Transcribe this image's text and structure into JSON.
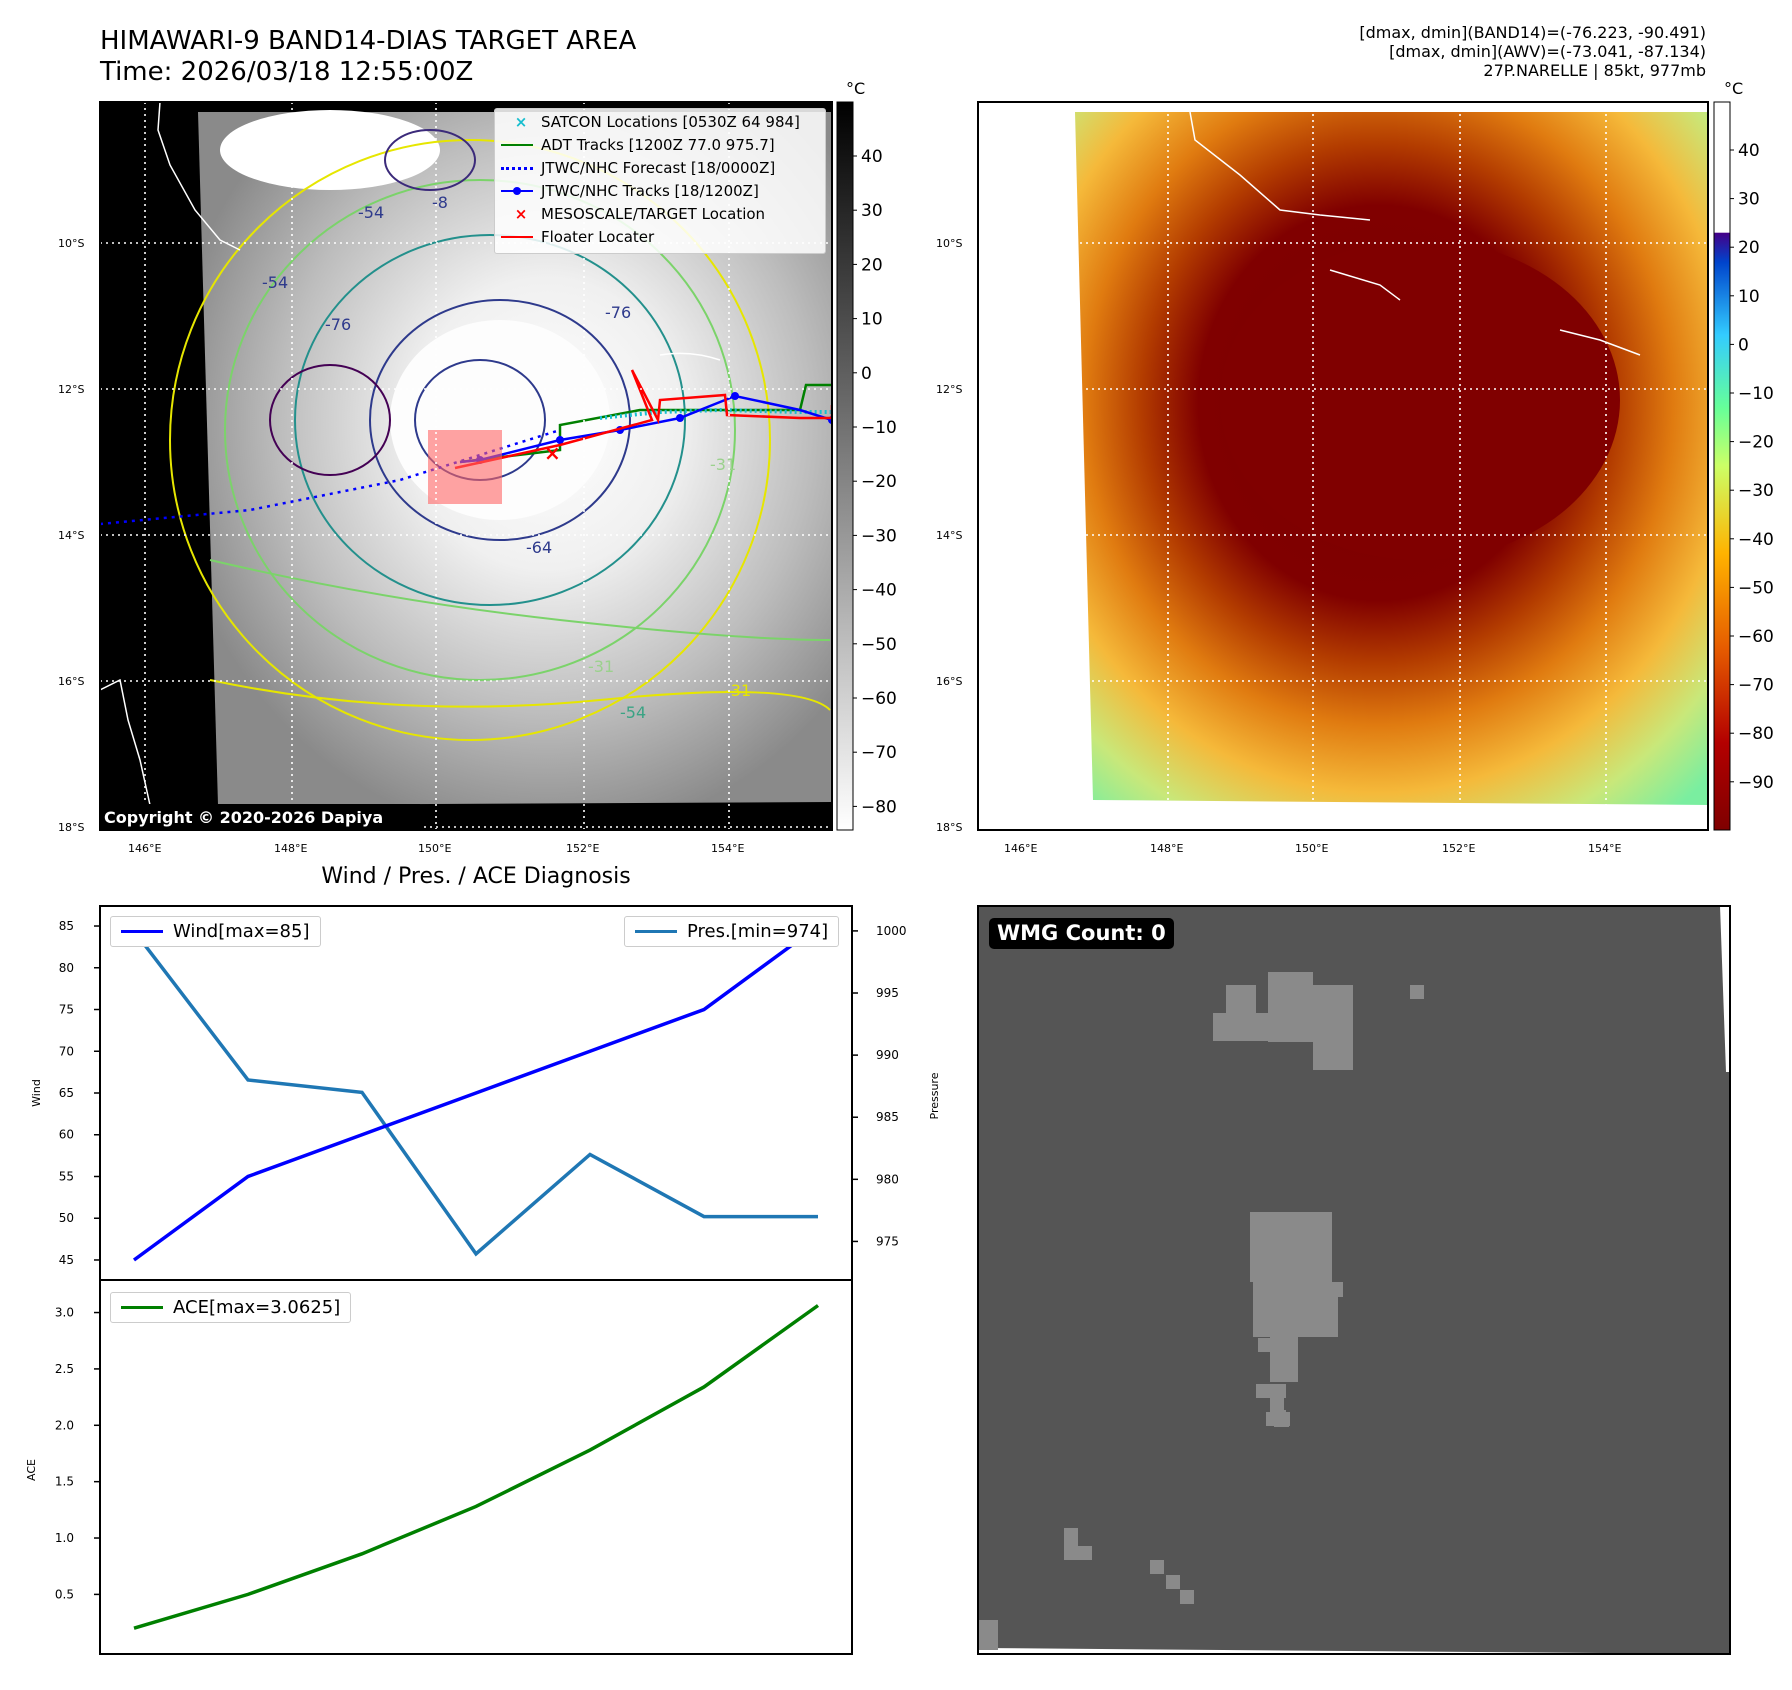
{
  "header": {
    "title_line1": "HIMAWARI-9 BAND14-DIAS TARGET AREA",
    "title_line2": "Time: 2026/03/18 12:55:00Z",
    "right_line1": "[dmax, dmin](BAND14)=(-76.223, -90.491)",
    "right_line2": "[dmax, dmin](AWV)=(-73.041, -87.134)",
    "right_line3": "27P.NARELLE | 85kt, 977mb"
  },
  "map_axes": {
    "lon_labels": [
      "146°E",
      "148°E",
      "150°E",
      "152°E",
      "154°E"
    ],
    "lat_labels": [
      "10°S",
      "12°S",
      "14°S",
      "16°S",
      "18°S"
    ]
  },
  "colorbar_left": {
    "unit": "°C",
    "ticks": [
      "40",
      "30",
      "20",
      "10",
      "0",
      "−10",
      "−20",
      "−30",
      "−40",
      "−50",
      "−60",
      "−70",
      "−80"
    ]
  },
  "colorbar_right": {
    "unit": "°C",
    "ticks": [
      "40",
      "30",
      "20",
      "10",
      "0",
      "−10",
      "−20",
      "−30",
      "−40",
      "−50",
      "−60",
      "−70",
      "−80",
      "−90"
    ]
  },
  "legend": {
    "items": [
      {
        "label": "SATCON Locations [0530Z 64 984]",
        "color": "#17becf"
      },
      {
        "label": "ADT Tracks [1200Z 77.0 975.7]",
        "color": "#008000"
      },
      {
        "label": "JTWC/NHC Forecast [18/0000Z]",
        "color": "#0000ff"
      },
      {
        "label": "JTWC/NHC Tracks [18/1200Z]",
        "color": "#0000ff"
      },
      {
        "label": "MESOSCALE/TARGET Location",
        "color": "#ff0000"
      },
      {
        "label": "Floater Locater",
        "color": "#ff0000"
      }
    ]
  },
  "contour_labels": [
    "-54",
    "-54",
    "-76",
    "-76",
    "-64",
    "-31",
    "-31",
    "-54",
    "-31",
    "-8"
  ],
  "copyright": "Copyright © 2020-2026 Dapiya",
  "wmg": {
    "label": "WMG Count: 0"
  },
  "chart_data": [
    {
      "type": "line",
      "title": "Wind / Pres. / ACE Diagnosis",
      "x": [
        0,
        1,
        2,
        3,
        4,
        5,
        6
      ],
      "series": [
        {
          "name": "Wind[max=85]",
          "axis": "left",
          "color": "#0000ff",
          "values": [
            45,
            55,
            60,
            65,
            70,
            75,
            85
          ]
        },
        {
          "name": "Pres.[min=974]",
          "axis": "right",
          "color": "#1f77b4",
          "values": [
            1000,
            988,
            987,
            974,
            982,
            977,
            977
          ]
        }
      ],
      "ylabel": "Wind",
      "ylabel_right": "Pressure",
      "ylim": [
        43.8,
        86.2
      ],
      "ylim_right": [
        972.7,
        1001.2
      ],
      "yticks": [
        45,
        50,
        55,
        60,
        65,
        70,
        75,
        80,
        85
      ],
      "yticks_right": [
        975,
        980,
        985,
        990,
        995,
        1000
      ]
    },
    {
      "type": "line",
      "x": [
        0,
        1,
        2,
        3,
        4,
        5,
        6
      ],
      "series": [
        {
          "name": "ACE[max=3.0625]",
          "color": "#008000",
          "values": [
            0.2,
            0.5,
            0.86,
            1.28,
            1.78,
            2.34,
            3.0625
          ]
        }
      ],
      "ylabel": "ACE",
      "ylim": [
        0.06,
        3.2
      ],
      "yticks": [
        0.5,
        1.0,
        1.5,
        2.0,
        2.5,
        3.0
      ]
    }
  ]
}
